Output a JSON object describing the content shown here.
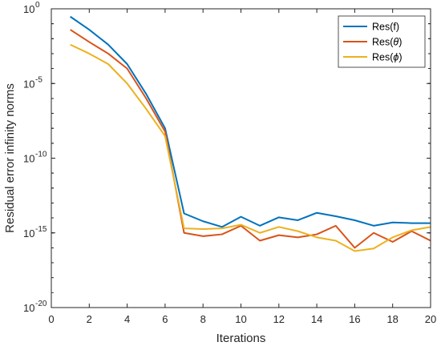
{
  "chart_data": {
    "type": "line",
    "title": "",
    "xlabel": "Iterations",
    "ylabel": "Residual error infinity norms",
    "xlim": [
      0,
      20
    ],
    "ylim": [
      1e-20,
      1
    ],
    "yscale": "log",
    "x_ticks": [
      0,
      2,
      4,
      6,
      8,
      10,
      12,
      14,
      16,
      18,
      20
    ],
    "x_tick_labels": [
      "0",
      "2",
      "4",
      "6",
      "8",
      "10",
      "12",
      "14",
      "16",
      "18",
      "20"
    ],
    "y_ticks": [
      1e-20,
      1e-15,
      1e-10,
      1e-05,
      1
    ],
    "y_tick_labels": [
      {
        "base": "10",
        "exp": "-20"
      },
      {
        "base": "10",
        "exp": "-15"
      },
      {
        "base": "10",
        "exp": "-10"
      },
      {
        "base": "10",
        "exp": "-5"
      },
      {
        "base": "10",
        "exp": "0"
      }
    ],
    "grid": false,
    "legend_position": "top-right",
    "x": [
      1,
      2,
      3,
      4,
      5,
      6,
      7,
      8,
      9,
      10,
      11,
      12,
      13,
      14,
      15,
      16,
      17,
      18,
      19,
      20
    ],
    "series": [
      {
        "name": "Res(f)",
        "legend_base": "Res(f)",
        "legend_greek": "",
        "legend_close": "",
        "color": "#0072BD",
        "values": [
          0.3,
          0.04,
          0.004,
          0.0002,
          2e-06,
          1e-08,
          2e-14,
          6e-15,
          2.5e-15,
          1.2e-14,
          3e-15,
          1.1e-14,
          7e-15,
          2.2e-14,
          1.3e-14,
          7e-15,
          3e-15,
          5e-15,
          4.5e-15,
          4.5e-15
        ]
      },
      {
        "name": "Res(θ)",
        "legend_base": "Res(",
        "legend_greek": "θ",
        "legend_close": ")",
        "color": "#D95319",
        "values": [
          0.04,
          0.006,
          0.001,
          0.0001,
          1e-06,
          6e-09,
          1e-15,
          6e-16,
          8e-16,
          3e-15,
          3e-16,
          7e-16,
          5e-16,
          8e-16,
          3e-15,
          1e-16,
          1e-15,
          2.5e-16,
          1.3e-15,
          3e-16
        ]
      },
      {
        "name": "Res(ϕ)",
        "legend_base": "Res(",
        "legend_greek": "ϕ",
        "legend_close": ")",
        "color": "#EDB120",
        "values": [
          0.004,
          0.001,
          0.0002,
          1e-05,
          2e-07,
          3e-09,
          2e-15,
          1.8e-15,
          2e-15,
          3.5e-15,
          1e-15,
          2.5e-15,
          1.3e-15,
          5e-16,
          3e-16,
          6e-17,
          9e-17,
          5e-16,
          1.5e-15,
          2.5e-15
        ]
      }
    ]
  }
}
